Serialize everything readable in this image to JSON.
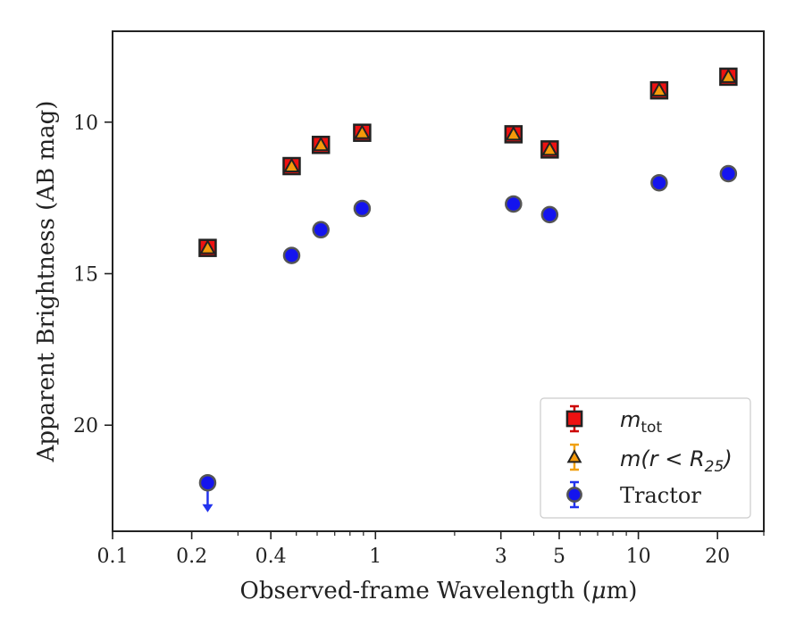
{
  "chart_data": {
    "type": "scatter",
    "xlabel_prefix": "Observed-frame Wavelength (",
    "xlabel_unit_mu": "μ",
    "xlabel_suffix": "m)",
    "ylabel": "Apparent Brightness (AB mag)",
    "x_scale": "log",
    "xlim": [
      0.1,
      30
    ],
    "ylim": [
      23.5,
      7.0
    ],
    "y_inverted": true,
    "x_ticks": [
      {
        "value": 0.1,
        "label": "0.1"
      },
      {
        "value": 0.2,
        "label": "0.2"
      },
      {
        "value": 0.4,
        "label": "0.4"
      },
      {
        "value": 1,
        "label": "1"
      },
      {
        "value": 3,
        "label": "3"
      },
      {
        "value": 5,
        "label": "5"
      },
      {
        "value": 10,
        "label": "10"
      },
      {
        "value": 20,
        "label": "20"
      }
    ],
    "y_ticks": [
      {
        "value": 10,
        "label": "10"
      },
      {
        "value": 15,
        "label": "15"
      },
      {
        "value": 20,
        "label": "20"
      }
    ],
    "grid": false,
    "legend_position": "bottom-right",
    "series": [
      {
        "name_main": "m",
        "name_sub": "tot",
        "marker": "square",
        "color": "#ee1111",
        "edge_color": "#222222",
        "errbar_color": "#cc0000",
        "points": [
          {
            "x": 0.23,
            "y": 14.15
          },
          {
            "x": 0.48,
            "y": 11.45
          },
          {
            "x": 0.62,
            "y": 10.75
          },
          {
            "x": 0.89,
            "y": 10.35
          },
          {
            "x": 3.35,
            "y": 10.4
          },
          {
            "x": 4.6,
            "y": 10.9
          },
          {
            "x": 12.0,
            "y": 8.95
          },
          {
            "x": 22.0,
            "y": 8.5
          }
        ]
      },
      {
        "name_main": "m",
        "name_paren": "(r < R",
        "name_sub": "25",
        "name_close": ")",
        "marker": "triangle",
        "color": "#f59a0a",
        "edge_color": "#222222",
        "errbar_color": "#f0a010",
        "points": [
          {
            "x": 0.23,
            "y": 14.15
          },
          {
            "x": 0.48,
            "y": 11.45
          },
          {
            "x": 0.62,
            "y": 10.75
          },
          {
            "x": 0.89,
            "y": 10.35
          },
          {
            "x": 3.35,
            "y": 10.4
          },
          {
            "x": 4.6,
            "y": 10.9
          },
          {
            "x": 12.0,
            "y": 8.95
          },
          {
            "x": 22.0,
            "y": 8.5
          }
        ]
      },
      {
        "name": "Tractor",
        "marker": "circle",
        "color": "#1414ee",
        "edge_color": "#555555",
        "errbar_color": "#2233ee",
        "points": [
          {
            "x": 0.23,
            "y": 21.9,
            "upper_limit": true
          },
          {
            "x": 0.48,
            "y": 14.4
          },
          {
            "x": 0.62,
            "y": 13.55
          },
          {
            "x": 0.89,
            "y": 12.85
          },
          {
            "x": 3.35,
            "y": 12.7
          },
          {
            "x": 4.6,
            "y": 13.05
          },
          {
            "x": 12.0,
            "y": 12.0
          },
          {
            "x": 22.0,
            "y": 11.7
          }
        ]
      }
    ]
  }
}
